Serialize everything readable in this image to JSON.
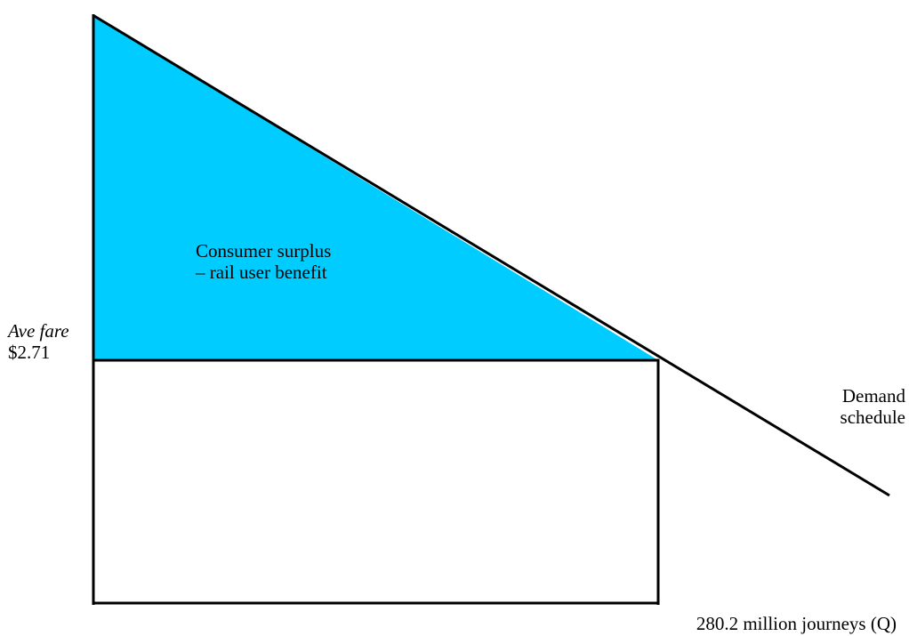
{
  "colors": {
    "surplus_fill": "#00CCFF",
    "line": "#000000",
    "background": "#FFFFFF"
  },
  "surplus_area": {
    "line1": "Consumer surplus",
    "line2": "– rail user benefit"
  },
  "price_axis": {
    "caption": "Ave fare",
    "value": "$2.71"
  },
  "curve": {
    "line1": "Demand",
    "line2": "schedule"
  },
  "quantity_axis": {
    "label": "280.2 million journeys (Q)"
  }
}
